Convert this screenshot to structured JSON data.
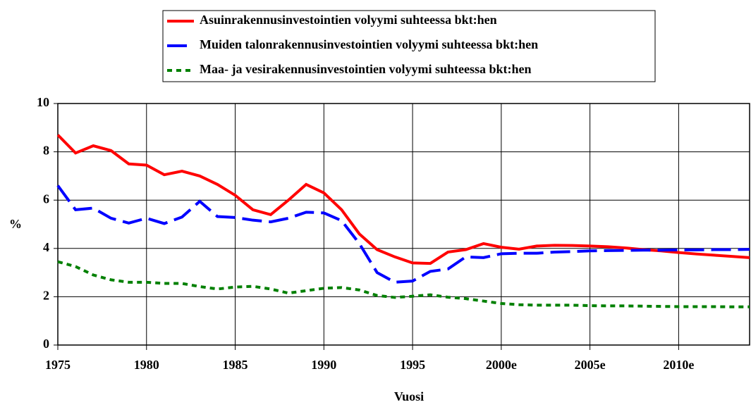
{
  "chart_data": {
    "type": "line",
    "x_label": "Vuosi",
    "y_label": "%",
    "x": [
      1975,
      1976,
      1977,
      1978,
      1979,
      1980,
      1981,
      1982,
      1983,
      1984,
      1985,
      1986,
      1987,
      1988,
      1989,
      1990,
      1991,
      1992,
      1993,
      1994,
      1995,
      1996,
      1997,
      1998,
      1999,
      2000,
      2001,
      2002,
      2003,
      2004,
      2005,
      2006,
      2007,
      2008,
      2009,
      2010,
      2011,
      2012,
      2013,
      2014
    ],
    "xlim": [
      1975,
      2014
    ],
    "xticks": [
      1975,
      1980,
      1985,
      1990,
      1995,
      {
        "value": 2000,
        "label": "2000e"
      },
      {
        "value": 2005,
        "label": "2005e"
      },
      {
        "value": 2010,
        "label": "2010e"
      }
    ],
    "ylim": [
      0,
      10
    ],
    "yticks": [
      0,
      2,
      4,
      6,
      8,
      10
    ],
    "grid": true,
    "legend": "top",
    "series": [
      {
        "name": "Asuinrakennusinvestointien volyymi suhteessa bkt:hen",
        "color": "#ff0000",
        "style": "solid",
        "values": [
          8.7,
          7.95,
          8.25,
          8.05,
          7.5,
          7.45,
          7.05,
          7.2,
          7.0,
          6.65,
          6.2,
          5.6,
          5.4,
          6.0,
          6.65,
          6.3,
          5.6,
          4.6,
          3.95,
          3.65,
          3.4,
          3.38,
          3.85,
          3.95,
          4.2,
          4.05,
          3.97,
          4.1,
          4.13,
          4.12,
          4.1,
          4.07,
          4.02,
          3.95,
          3.9,
          3.83,
          3.77,
          3.72,
          3.67,
          3.62
        ]
      },
      {
        "name": "Muiden talonrakennusinvestointien volyymi suhteessa bkt:hen",
        "color": "#0000ff",
        "style": "dashed",
        "values": [
          6.6,
          5.6,
          5.67,
          5.25,
          5.05,
          5.25,
          5.03,
          5.3,
          5.95,
          5.32,
          5.28,
          5.17,
          5.1,
          5.25,
          5.5,
          5.47,
          5.15,
          4.2,
          3.0,
          2.6,
          2.65,
          3.05,
          3.15,
          3.65,
          3.62,
          3.78,
          3.8,
          3.8,
          3.85,
          3.87,
          3.9,
          3.91,
          3.92,
          3.93,
          3.93,
          3.94,
          3.94,
          3.95,
          3.95,
          3.96
        ]
      },
      {
        "name": "Maa- ja vesirakennusinvestointien volyymi suhteessa bkt:hen",
        "color": "#008000",
        "style": "dotted",
        "values": [
          3.45,
          3.25,
          2.9,
          2.7,
          2.6,
          2.6,
          2.55,
          2.55,
          2.42,
          2.32,
          2.4,
          2.43,
          2.32,
          2.15,
          2.25,
          2.35,
          2.38,
          2.28,
          2.05,
          1.97,
          2.02,
          2.08,
          1.98,
          1.92,
          1.82,
          1.72,
          1.67,
          1.65,
          1.65,
          1.65,
          1.63,
          1.62,
          1.62,
          1.61,
          1.6,
          1.59,
          1.59,
          1.59,
          1.58,
          1.58
        ]
      }
    ]
  }
}
